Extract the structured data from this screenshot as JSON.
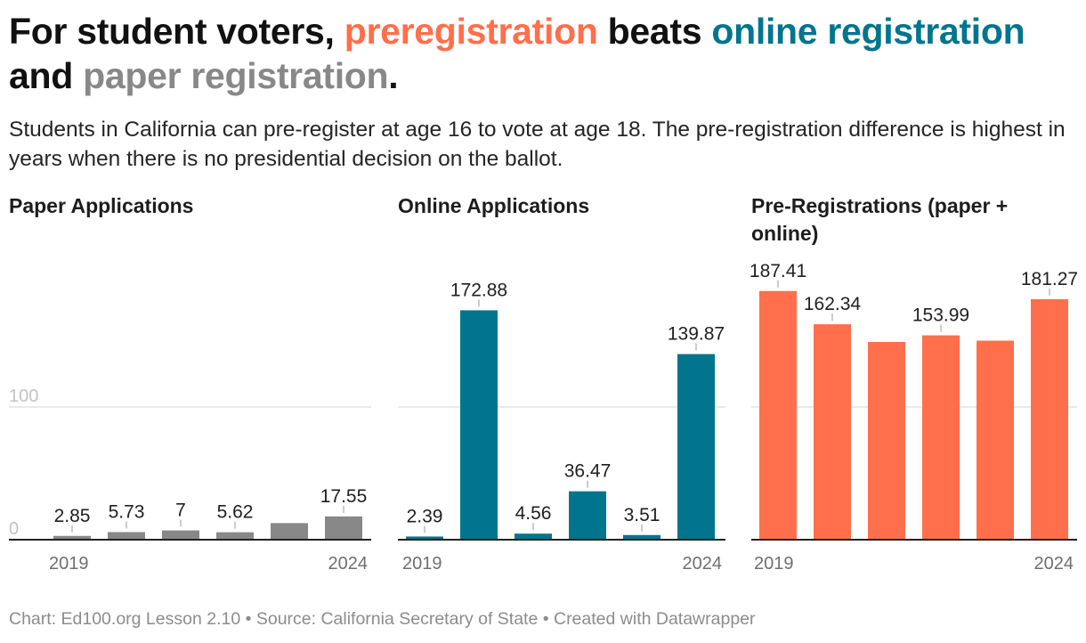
{
  "headline": {
    "part1": "For student voters, ",
    "pre": "preregistration",
    "part2": " beats ",
    "online": "online registration",
    "part3": " and ",
    "paper": "paper registration",
    "part4": "."
  },
  "subtitle": "Students in California can pre-register at age 16 to vote at age 18. The pre-registration difference is highest in years when there is no presidential decision on the ballot.",
  "footer": "Chart: Ed100.org Lesson 2.10 • Source: California Secretary of State • Created with Datawrapper",
  "colors": {
    "paper": "#888888",
    "online": "#00758d",
    "pre": "#ff6f4b",
    "grid": "#dcdcdc",
    "axis": "#222222",
    "label_muted": "#c3c3c3"
  },
  "chart_data": [
    {
      "type": "bar",
      "title": "Paper Applications",
      "color": "#888888",
      "x_labels": [
        "2019",
        "2024"
      ],
      "values": [
        2.85,
        5.73,
        7,
        5.62,
        12.5,
        17.55
      ],
      "labels": [
        "2.85",
        "5.73",
        "7",
        "5.62",
        "",
        "17.55"
      ],
      "y_ticks": [
        {
          "value": 0,
          "label": "0"
        },
        {
          "value": 100,
          "label": "100"
        }
      ],
      "ylim": [
        0,
        200
      ],
      "grid": true
    },
    {
      "type": "bar",
      "title": "Online Applications",
      "color": "#00758d",
      "x_labels": [
        "2019",
        "2024"
      ],
      "values": [
        2.39,
        172.88,
        4.56,
        36.47,
        3.51,
        139.87
      ],
      "labels": [
        "2.39",
        "172.88",
        "4.56",
        "36.47",
        "3.51",
        "139.87"
      ],
      "y_ticks": [
        {
          "value": 0,
          "label": ""
        },
        {
          "value": 100,
          "label": ""
        }
      ],
      "ylim": [
        0,
        200
      ],
      "grid": true
    },
    {
      "type": "bar",
      "title": "Pre-Registrations (paper + online)",
      "color": "#ff6f4b",
      "x_labels": [
        "2019",
        "2024"
      ],
      "values": [
        187.41,
        162.34,
        149,
        153.99,
        150,
        181.27
      ],
      "labels": [
        "187.41",
        "162.34",
        "",
        "153.99",
        "",
        "181.27"
      ],
      "y_ticks": [
        {
          "value": 0,
          "label": ""
        },
        {
          "value": 100,
          "label": ""
        }
      ],
      "ylim": [
        0,
        200
      ],
      "grid": true
    }
  ]
}
